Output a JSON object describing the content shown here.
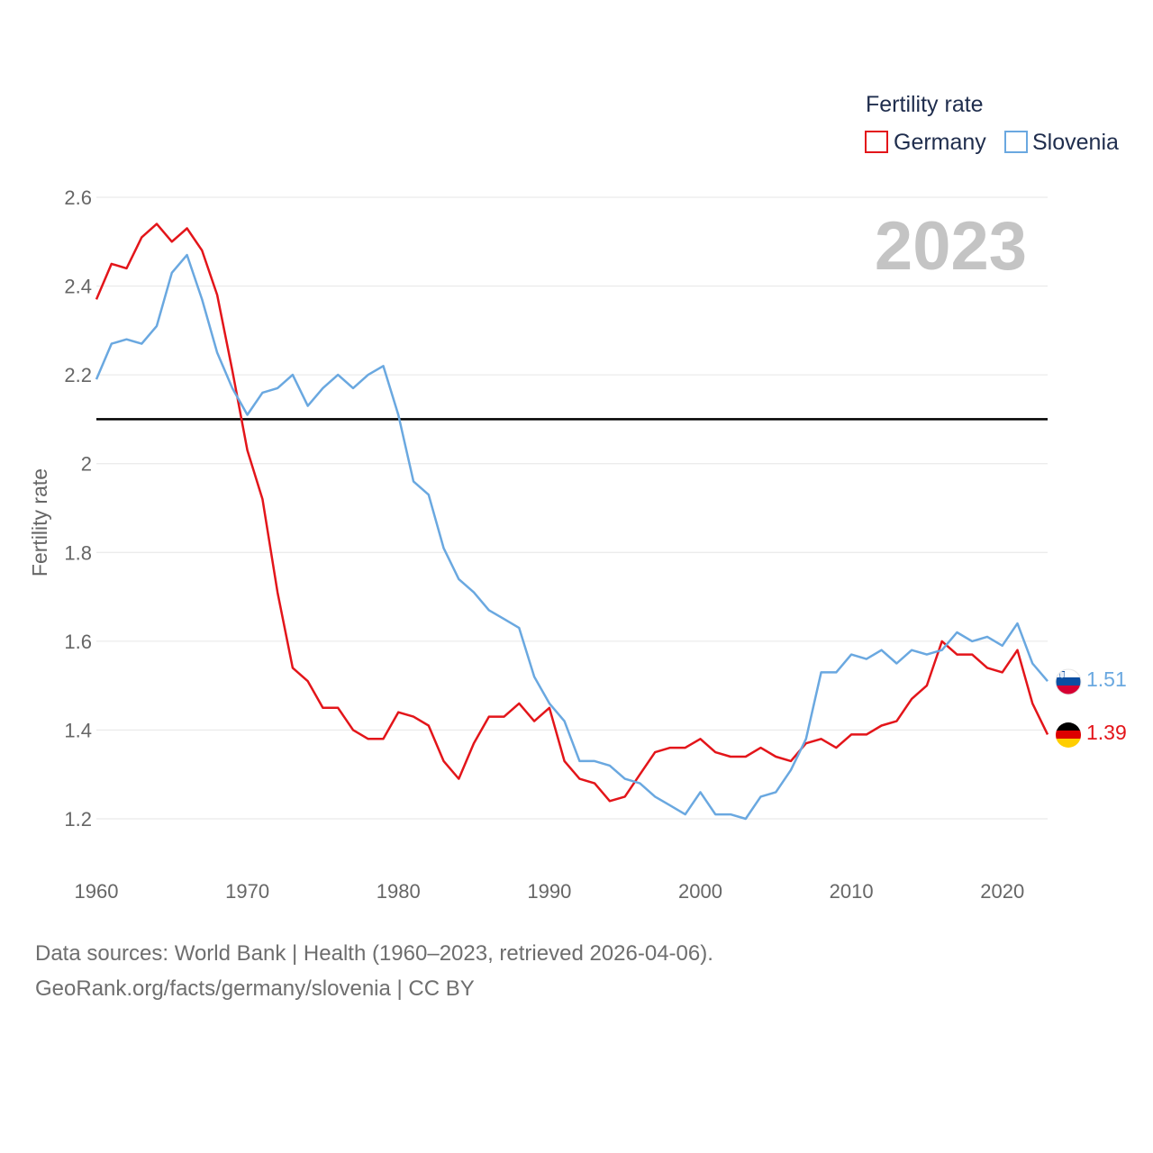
{
  "chart_data": {
    "type": "line",
    "title": "",
    "legend_title": "Fertility rate",
    "year_label": "2023",
    "xlabel": "",
    "ylabel": "Fertility rate",
    "xlim": [
      1960,
      2023
    ],
    "ylim": [
      1.2,
      2.6
    ],
    "x_ticks": [
      1960,
      1970,
      1980,
      1990,
      2000,
      2010,
      2020
    ],
    "y_ticks": [
      {
        "value": 1.2,
        "label": "1.2"
      },
      {
        "value": 1.4,
        "label": "1.4"
      },
      {
        "value": 1.6,
        "label": "1.6"
      },
      {
        "value": 1.8,
        "label": "1.8"
      },
      {
        "value": 2.0,
        "label": "2"
      },
      {
        "value": 2.2,
        "label": "2.2"
      },
      {
        "value": 2.4,
        "label": "2.4"
      },
      {
        "value": 2.6,
        "label": "2.6"
      }
    ],
    "reference_line": {
      "value": 2.1,
      "color": "#000000"
    },
    "x_start": 1960,
    "series": [
      {
        "name": "Germany",
        "color": "#e3151a",
        "end_label": "1.39",
        "values": [
          2.37,
          2.45,
          2.44,
          2.51,
          2.54,
          2.5,
          2.53,
          2.48,
          2.38,
          2.21,
          2.03,
          1.92,
          1.71,
          1.54,
          1.51,
          1.45,
          1.45,
          1.4,
          1.38,
          1.38,
          1.44,
          1.43,
          1.41,
          1.33,
          1.29,
          1.37,
          1.43,
          1.43,
          1.46,
          1.42,
          1.45,
          1.33,
          1.29,
          1.28,
          1.24,
          1.25,
          1.3,
          1.35,
          1.36,
          1.36,
          1.38,
          1.35,
          1.34,
          1.34,
          1.36,
          1.34,
          1.33,
          1.37,
          1.38,
          1.36,
          1.39,
          1.39,
          1.41,
          1.42,
          1.47,
          1.5,
          1.6,
          1.57,
          1.57,
          1.54,
          1.53,
          1.58,
          1.46,
          1.39
        ]
      },
      {
        "name": "Slovenia",
        "color": "#6aa8e0",
        "end_label": "1.51",
        "values": [
          2.19,
          2.27,
          2.28,
          2.27,
          2.31,
          2.43,
          2.47,
          2.37,
          2.25,
          2.17,
          2.11,
          2.16,
          2.17,
          2.2,
          2.13,
          2.17,
          2.2,
          2.17,
          2.2,
          2.22,
          2.11,
          1.96,
          1.93,
          1.81,
          1.74,
          1.71,
          1.67,
          1.65,
          1.63,
          1.52,
          1.46,
          1.42,
          1.33,
          1.33,
          1.32,
          1.29,
          1.28,
          1.25,
          1.23,
          1.21,
          1.26,
          1.21,
          1.21,
          1.2,
          1.25,
          1.26,
          1.31,
          1.38,
          1.53,
          1.53,
          1.57,
          1.56,
          1.58,
          1.55,
          1.58,
          1.57,
          1.58,
          1.62,
          1.6,
          1.61,
          1.59,
          1.64,
          1.55,
          1.51
        ]
      }
    ]
  },
  "footer": {
    "line1": "Data sources: World Bank | Health (1960–2023, retrieved 2026-04-06).",
    "line2": "GeoRank.org/facts/germany/slovenia | CC BY"
  }
}
